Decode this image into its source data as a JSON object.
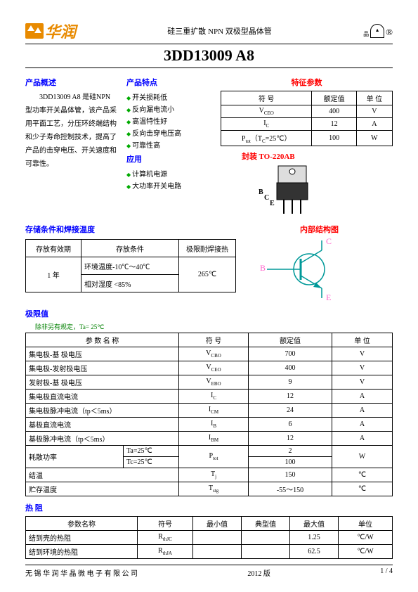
{
  "header": {
    "logo_text": "华润",
    "subtitle": "硅三重扩散 NPN 双极型晶体管",
    "reg_mark": "®",
    "cert_text": "品"
  },
  "title": "3DD13009 A8",
  "overview": {
    "heading": "产品概述",
    "text": "3DD13009 A8 是硅NPN型功率开关晶体管，该产品采用平面工艺，分压环终端结构和少子寿命控制技术，提高了产品的击穿电压、开关速度和可靠性。"
  },
  "features": {
    "heading": "产品特点",
    "items": [
      "开关损耗低",
      "反向漏电流小",
      "高温特性好",
      "反向击穿电压高",
      "可靠性高"
    ]
  },
  "applications": {
    "heading": "应用",
    "items": [
      "计算机电源",
      "大功率开关电路"
    ]
  },
  "char_params": {
    "heading": "特征参数",
    "col_symbol": "符 号",
    "col_rating": "额定值",
    "col_unit": "单 位",
    "rows": [
      {
        "sym_html": "V<span class='sub'>CEO</span>",
        "val": "400",
        "unit": "V"
      },
      {
        "sym_html": "I<span class='sub'>C</span>",
        "val": "12",
        "unit": "A"
      },
      {
        "sym_html": "P<span class='sub'>tot</span>（T<span class='sub'>C</span>=25℃）",
        "val": "100",
        "unit": "W"
      }
    ]
  },
  "package": {
    "heading": "封装",
    "type": "TO-220AB",
    "pin_b": "B",
    "pin_c": "C",
    "pin_e": "E"
  },
  "internal": {
    "heading": "内部结构图",
    "b": "B",
    "c": "C",
    "e": "E"
  },
  "storage": {
    "heading": "存储条件和焊接温度",
    "col1": "存放有效期",
    "col2": "存放条件",
    "col3": "极限耐焊接热",
    "period": "1 年",
    "cond1": "环境温度-10℃～40℃",
    "cond2": "相对湿度 <85%",
    "solder": "265℃"
  },
  "limits": {
    "heading": "极限值",
    "note": "除非另有规定，Ta= 25℃",
    "col_param": "参 数 名 称",
    "col_symbol": "符 号",
    "col_rating": "额定值",
    "col_unit": "单 位",
    "rows": [
      {
        "p": "集电极-基  极电压",
        "s": "V<span class='sub'>CBO</span>",
        "v": "700",
        "u": "V"
      },
      {
        "p": "集电极-发射极电压",
        "s": "V<span class='sub'>CEO</span>",
        "v": "400",
        "u": "V"
      },
      {
        "p": "发射极-基  极电压",
        "s": "V<span class='sub'>EBO</span>",
        "v": "9",
        "u": "V"
      },
      {
        "p": "集电极直流电流",
        "s": "I<span class='sub'>C</span>",
        "v": "12",
        "u": "A"
      },
      {
        "p": "集电极脉冲电流（tp＜5ms）",
        "s": "I<span class='sub'>CM</span>",
        "v": "24",
        "u": "A"
      },
      {
        "p": "基极直流电流",
        "s": "I<span class='sub'>B</span>",
        "v": "6",
        "u": "A"
      },
      {
        "p": "基极脉冲电流（tp＜5ms）",
        "s": "I<span class='sub'>BM</span>",
        "v": "12",
        "u": "A"
      }
    ],
    "ptot_label": "耗散功率",
    "ptot_ta": "Ta=25℃",
    "ptot_tc": "Tc=25℃",
    "ptot_sym": "P<span class='sub'>tot</span>",
    "ptot_v1": "2",
    "ptot_v2": "100",
    "ptot_u": "W",
    "tj_label": "结温",
    "tj_sym": "T<span class='sub'>j</span>",
    "tj_v": "150",
    "tj_u": "℃",
    "tstg_label": "贮存温度",
    "tstg_sym": "T<span class='sub'>stg</span>",
    "tstg_v": "-55～150",
    "tstg_u": "℃"
  },
  "thermal": {
    "heading": "热 阻",
    "col_param": "参数名称",
    "col_symbol": "符号",
    "col_min": "最小值",
    "col_typ": "典型值",
    "col_max": "最大值",
    "col_unit": "单位",
    "rows": [
      {
        "p": "结到壳的热阻",
        "s": "R<span class='sub'>thJC</span>",
        "min": "",
        "typ": "",
        "max": "1.25",
        "u": "℃/W"
      },
      {
        "p": "结到环境的热阻",
        "s": "R<span class='sub'>thJA</span>",
        "min": "",
        "typ": "",
        "max": "62.5",
        "u": "℃/W"
      }
    ]
  },
  "footer": {
    "left": "无 锡 华 润 华 晶 微 电 子 有 限 公 司",
    "center": "2012 版",
    "right": "1 / 4"
  },
  "colors": {
    "blue": "#0000ff",
    "red": "#ff0000",
    "green_bullet": "#00aa00",
    "green_text": "#008000",
    "orange": "#e88a00",
    "pink": "#ff66cc",
    "teal": "#009999"
  }
}
